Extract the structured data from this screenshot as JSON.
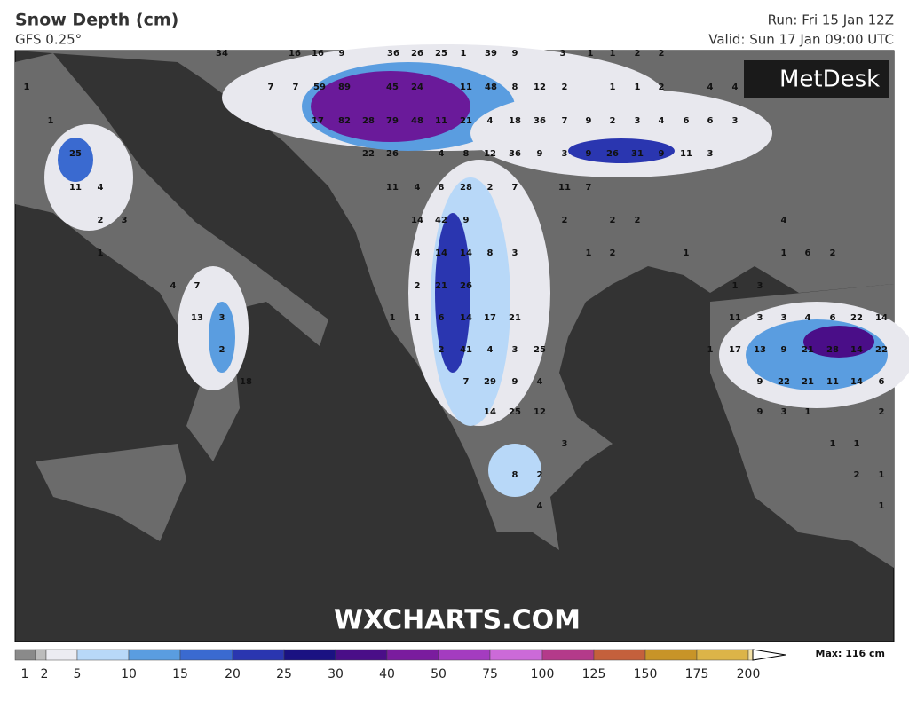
{
  "header": {
    "title": "Snow Depth (cm)",
    "subtitle": "GFS 0.25°",
    "run": "Run: Fri 15 Jan 12Z",
    "valid": "Valid: Sun 17 Jan 09:00 UTC"
  },
  "logo": "MetDesk",
  "watermark": "WXCHARTS.COM",
  "map_labels": [
    34,
    16,
    16,
    9,
    36,
    26,
    25,
    1,
    39,
    9,
    3,
    1,
    1,
    2,
    2,
    1,
    7,
    7,
    59,
    89,
    45,
    24,
    11,
    48,
    8,
    12,
    2,
    1,
    1,
    2,
    4,
    4,
    1,
    17,
    82,
    28,
    79,
    48,
    11,
    21,
    4,
    18,
    36,
    7,
    9,
    2,
    3,
    4,
    6,
    6,
    3,
    25,
    22,
    26,
    4,
    8,
    12,
    36,
    9,
    3,
    9,
    26,
    31,
    9,
    11,
    3,
    11,
    4,
    11,
    4,
    8,
    28,
    2,
    7,
    11,
    7,
    2,
    3,
    14,
    42,
    9,
    2,
    2,
    2,
    4,
    1,
    4,
    14,
    14,
    8,
    3,
    1,
    2,
    1,
    1,
    6,
    2,
    4,
    7,
    2,
    21,
    26,
    1,
    3,
    13,
    3,
    1,
    1,
    6,
    14,
    17,
    21,
    11,
    3,
    3,
    4,
    6,
    22,
    14,
    2,
    2,
    41,
    4,
    3,
    25,
    1,
    17,
    13,
    9,
    21,
    28,
    14,
    22,
    18,
    7,
    29,
    9,
    4,
    9,
    22,
    21,
    11,
    14,
    6,
    14,
    25,
    12,
    9,
    3,
    1,
    2,
    3,
    1,
    1,
    8,
    2,
    2,
    1,
    4,
    1
  ],
  "legend": {
    "ticks": [
      1,
      2,
      5,
      10,
      15,
      20,
      25,
      30,
      40,
      50,
      75,
      100,
      125,
      150,
      175,
      200
    ],
    "colors": [
      "#8a8a8a",
      "#bcbcbc",
      "#ececf2",
      "#b8d8f8",
      "#5a9de0",
      "#3a6ad0",
      "#2a36b0",
      "#1a1282",
      "#4a0e88",
      "#7a1c9e",
      "#a43cc0",
      "#cc6ad8",
      "#b43a8a",
      "#c4603c",
      "#c89428",
      "#dcb448",
      "#f4e2a8"
    ],
    "max": "Max: 116 cm"
  }
}
